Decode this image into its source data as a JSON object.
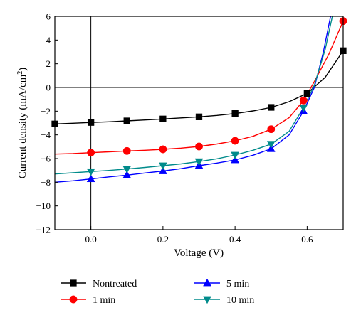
{
  "chart_data": {
    "type": "line",
    "xlabel": "Voltage (V)",
    "ylabel": "Current density (mA/cm²)",
    "ylabel_parts": {
      "main": "Current density (mA/cm",
      "sup": "2",
      "end": ")"
    },
    "xlim": [
      -0.1,
      0.7
    ],
    "ylim": [
      -12,
      6
    ],
    "xticks": [
      0.0,
      0.2,
      0.4,
      0.6
    ],
    "xtick_labels": [
      "0.0",
      "0.2",
      "0.4",
      "0.6"
    ],
    "yticks": [
      -12,
      -10,
      -8,
      -6,
      -4,
      -2,
      0,
      2,
      4,
      6
    ],
    "ytick_labels": [
      "−12",
      "−10",
      "−8",
      "−6",
      "−4",
      "−2",
      "0",
      "2",
      "4",
      "6"
    ],
    "grid": false,
    "legend_position": "bottom",
    "reference_lines": {
      "x": 0,
      "y": 0
    },
    "series": [
      {
        "name": "Nontreated",
        "color": "#000000",
        "marker": "square",
        "points": [
          [
            -0.1,
            -3.08
          ],
          [
            -0.05,
            -3.02
          ],
          [
            0.0,
            -2.95
          ],
          [
            0.05,
            -2.9
          ],
          [
            0.1,
            -2.82
          ],
          [
            0.15,
            -2.74
          ],
          [
            0.2,
            -2.66
          ],
          [
            0.25,
            -2.57
          ],
          [
            0.3,
            -2.48
          ],
          [
            0.35,
            -2.36
          ],
          [
            0.4,
            -2.2
          ],
          [
            0.45,
            -1.98
          ],
          [
            0.5,
            -1.68
          ],
          [
            0.55,
            -1.2
          ],
          [
            0.6,
            -0.5
          ],
          [
            0.65,
            0.85
          ],
          [
            0.7,
            3.1
          ]
        ],
        "markers": [
          [
            -0.1,
            -3.08
          ],
          [
            0.0,
            -2.95
          ],
          [
            0.1,
            -2.82
          ],
          [
            0.2,
            -2.66
          ],
          [
            0.3,
            -2.48
          ],
          [
            0.4,
            -2.2
          ],
          [
            0.5,
            -1.68
          ],
          [
            0.6,
            -0.5
          ],
          [
            0.7,
            3.1
          ]
        ]
      },
      {
        "name": "1 min",
        "color": "#ff0000",
        "marker": "circle",
        "points": [
          [
            -0.1,
            -5.62
          ],
          [
            -0.05,
            -5.58
          ],
          [
            0.0,
            -5.5
          ],
          [
            0.05,
            -5.43
          ],
          [
            0.1,
            -5.36
          ],
          [
            0.15,
            -5.3
          ],
          [
            0.2,
            -5.22
          ],
          [
            0.25,
            -5.12
          ],
          [
            0.3,
            -4.98
          ],
          [
            0.35,
            -4.77
          ],
          [
            0.4,
            -4.5
          ],
          [
            0.45,
            -4.12
          ],
          [
            0.5,
            -3.52
          ],
          [
            0.55,
            -2.55
          ],
          [
            0.59,
            -1.1
          ],
          [
            0.62,
            0.5
          ],
          [
            0.66,
            2.8
          ],
          [
            0.7,
            5.6
          ]
        ],
        "markers": [
          [
            0.0,
            -5.5
          ],
          [
            0.1,
            -5.36
          ],
          [
            0.2,
            -5.22
          ],
          [
            0.3,
            -4.98
          ],
          [
            0.4,
            -4.5
          ],
          [
            0.5,
            -3.52
          ],
          [
            0.59,
            -1.1
          ],
          [
            0.7,
            5.6
          ]
        ]
      },
      {
        "name": "5 min",
        "color": "#0000ff",
        "marker": "triangle-up",
        "points": [
          [
            -0.1,
            -8.0
          ],
          [
            -0.05,
            -7.88
          ],
          [
            0.0,
            -7.72
          ],
          [
            0.05,
            -7.55
          ],
          [
            0.1,
            -7.4
          ],
          [
            0.15,
            -7.22
          ],
          [
            0.2,
            -7.05
          ],
          [
            0.25,
            -6.85
          ],
          [
            0.3,
            -6.6
          ],
          [
            0.35,
            -6.38
          ],
          [
            0.4,
            -6.12
          ],
          [
            0.45,
            -5.72
          ],
          [
            0.5,
            -5.18
          ],
          [
            0.55,
            -4.0
          ],
          [
            0.59,
            -2.0
          ],
          [
            0.62,
            0.0
          ],
          [
            0.645,
            3.0
          ],
          [
            0.665,
            6.0
          ]
        ],
        "markers": [
          [
            0.0,
            -7.72
          ],
          [
            0.1,
            -7.4
          ],
          [
            0.2,
            -7.05
          ],
          [
            0.3,
            -6.6
          ],
          [
            0.4,
            -6.12
          ],
          [
            0.5,
            -5.18
          ],
          [
            0.59,
            -2.0
          ]
        ]
      },
      {
        "name": "10 min",
        "color": "#008b8b",
        "marker": "triangle-down",
        "points": [
          [
            -0.1,
            -7.3
          ],
          [
            -0.05,
            -7.2
          ],
          [
            0.0,
            -7.1
          ],
          [
            0.05,
            -7.0
          ],
          [
            0.1,
            -6.88
          ],
          [
            0.15,
            -6.75
          ],
          [
            0.2,
            -6.6
          ],
          [
            0.25,
            -6.45
          ],
          [
            0.3,
            -6.25
          ],
          [
            0.35,
            -6.02
          ],
          [
            0.4,
            -5.7
          ],
          [
            0.45,
            -5.3
          ],
          [
            0.5,
            -4.78
          ],
          [
            0.55,
            -3.7
          ],
          [
            0.59,
            -1.7
          ],
          [
            0.62,
            0.2
          ],
          [
            0.65,
            3.2
          ],
          [
            0.67,
            6.0
          ]
        ],
        "markers": [
          [
            0.0,
            -7.1
          ],
          [
            0.1,
            -6.88
          ],
          [
            0.2,
            -6.6
          ],
          [
            0.3,
            -6.25
          ],
          [
            0.4,
            -5.7
          ],
          [
            0.5,
            -4.78
          ],
          [
            0.59,
            -1.7
          ]
        ]
      }
    ]
  }
}
